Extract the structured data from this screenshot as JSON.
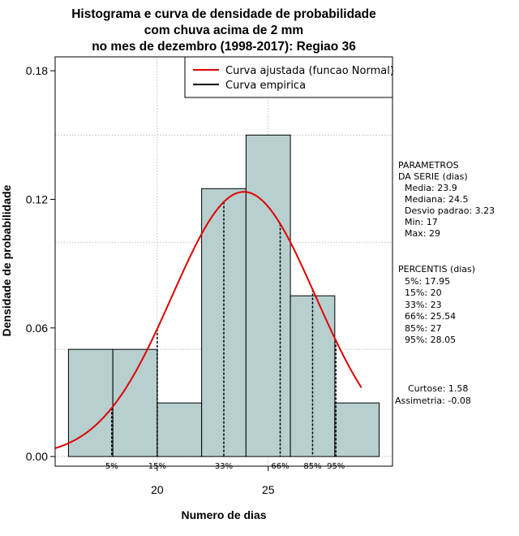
{
  "chart_data": {
    "type": "histogram",
    "title_lines": [
      "Histograma e curva de densidade de probabilidade",
      "com chuva acima de 2 mm",
      "no mes de dezembro (1998-2017): Regiao 36"
    ],
    "xlabel": "Numero de dias",
    "ylabel": "Densidade de probabilidade",
    "xlim": [
      15.4,
      30.6
    ],
    "ylim": [
      -0.0045,
      0.1865
    ],
    "x_ticks": [
      20,
      25
    ],
    "y_ticks": [
      0.0,
      0.06,
      0.12,
      0.18
    ],
    "x_tick_labels": [
      "20",
      "25"
    ],
    "y_tick_labels": [
      "0.00",
      "0.06",
      "0.12",
      "0.18"
    ],
    "grid_x": [
      20,
      25
    ],
    "grid_y": [
      0.05,
      0.1,
      0.15
    ],
    "bins": [
      {
        "start": 16,
        "end": 18,
        "density": 0.05
      },
      {
        "start": 18,
        "end": 20,
        "density": 0.05
      },
      {
        "start": 20,
        "end": 22,
        "density": 0.025
      },
      {
        "start": 22,
        "end": 24,
        "density": 0.125
      },
      {
        "start": 24,
        "end": 26,
        "density": 0.15
      },
      {
        "start": 26,
        "end": 28,
        "density": 0.075
      },
      {
        "start": 28,
        "end": 30,
        "density": 0.025
      }
    ],
    "fitted_curve": {
      "name": "Curva ajustada (funcao Normal)",
      "mean": 23.9,
      "sd": 3.23,
      "x_from": 15.4,
      "x_to": 29.2,
      "color": "#e00000"
    },
    "empirical_curve": {
      "name": "Curva empirica",
      "color": "#000000"
    },
    "percentile_markers": [
      {
        "label": "5%",
        "x": 17.95
      },
      {
        "label": "15%",
        "x": 20
      },
      {
        "label": "33%",
        "x": 23
      },
      {
        "label": "66%",
        "x": 25.54
      },
      {
        "label": "85%",
        "x": 27
      },
      {
        "label": "95%",
        "x": 28.05
      }
    ],
    "legend": {
      "position": "top-right",
      "entries": [
        {
          "label": "Curva ajustada (funcao Normal)",
          "color": "#e00000"
        },
        {
          "label": "Curva empirica",
          "color": "#000000"
        }
      ]
    },
    "bar_fill": "#b7cfcf",
    "grid_color": "#bbbbbb"
  },
  "side_panel": {
    "params_lines": [
      "PARAMETROS",
      "DA SERIE (dias)",
      "Media: 23.9",
      "Mediana: 24.5",
      "Desvio padrao: 3.23",
      "Min: 17",
      "Max: 29"
    ],
    "percentis_lines": [
      "PERCENTIS (dias)",
      "5%: 17.95",
      "15%: 20",
      "33%: 23",
      "66%: 25.54",
      "85%: 27",
      "95%: 28.05"
    ],
    "shape_lines": [
      "Curtose: 1.58",
      "Assimetria: -0.08"
    ]
  }
}
